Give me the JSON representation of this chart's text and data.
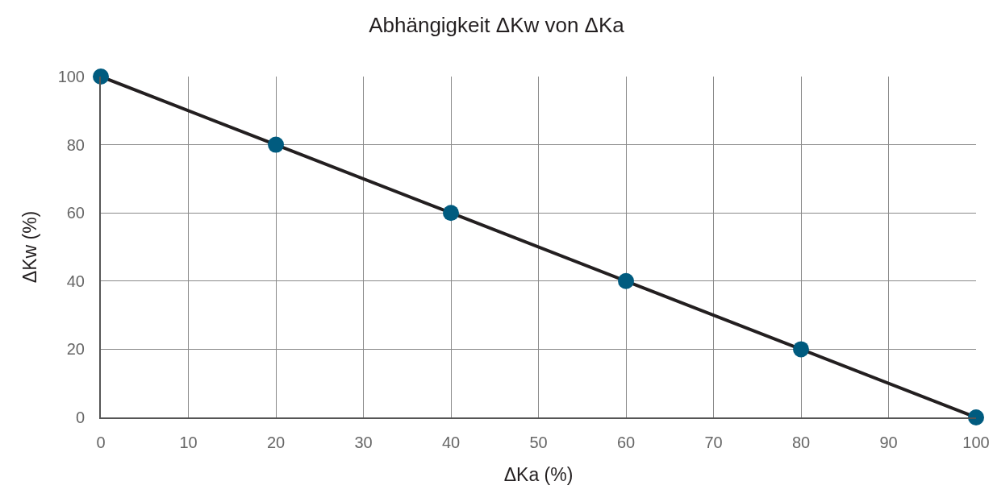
{
  "chart_data": {
    "type": "line",
    "title": "Abhängigkeit ΔKw von ΔKa",
    "xlabel": "ΔKa (%)",
    "ylabel": "ΔKw (%)",
    "x": [
      0,
      20,
      40,
      60,
      80,
      100
    ],
    "series": [
      {
        "color": "#231f20",
        "values": [
          100,
          80,
          60,
          40,
          20,
          0
        ]
      },
      {
        "type": "scatter",
        "color": "#005b7f",
        "marker": "circle",
        "values": [
          100,
          80,
          60,
          40,
          20,
          0
        ]
      }
    ],
    "xlim": [
      0,
      100
    ],
    "xticks": [
      0,
      10,
      20,
      30,
      40,
      50,
      60,
      70,
      80,
      90,
      100
    ],
    "ylim": [
      0,
      100
    ],
    "yticks": [
      0,
      20,
      40,
      60,
      80,
      100
    ],
    "grid": true
  }
}
